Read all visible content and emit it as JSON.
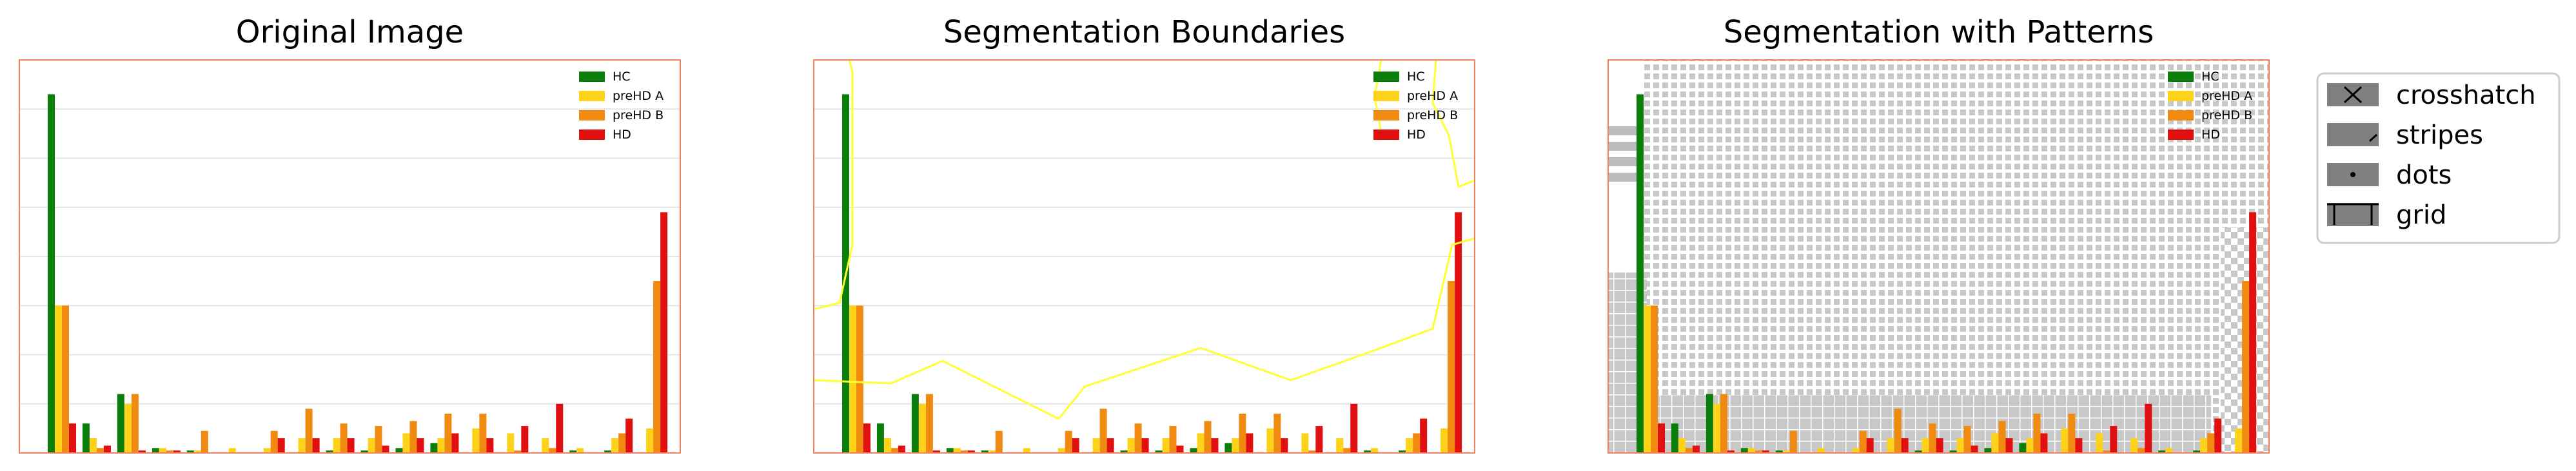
{
  "chart_data": [
    {
      "type": "bar",
      "title": "Original Image",
      "xlabel": "",
      "ylabel": "",
      "ylim": [
        0,
        8
      ],
      "grid": true,
      "legend_position": "top-right",
      "series": [
        {
          "name": "HC",
          "color": "#0a7d0a",
          "values": [
            7.3,
            0.6,
            1.2,
            0.1,
            0.05,
            0,
            0,
            0,
            0.05,
            0.05,
            0.1,
            0.2,
            0,
            0,
            0,
            0.05,
            0.05,
            0
          ]
        },
        {
          "name": "preHD A",
          "color": "#ffd21a",
          "values": [
            3.0,
            0.3,
            1.0,
            0.1,
            0.05,
            0.1,
            0.1,
            0.3,
            0.3,
            0.3,
            0.4,
            0.3,
            0.5,
            0.4,
            0.3,
            0.1,
            0.3,
            0.5
          ]
        },
        {
          "name": "preHD B",
          "color": "#f08a10",
          "values": [
            3.0,
            0.1,
            1.2,
            0.05,
            0.45,
            0,
            0.45,
            0.9,
            0.6,
            0.55,
            0.65,
            0.8,
            0.8,
            0.05,
            0.1,
            0,
            0.4,
            3.5
          ]
        },
        {
          "name": "HD",
          "color": "#e01010",
          "values": [
            0.6,
            0.15,
            0.05,
            0.05,
            0,
            0,
            0.3,
            0.3,
            0.3,
            0.15,
            0.3,
            0.4,
            0.3,
            0.55,
            1.0,
            0,
            0.7,
            4.9
          ]
        }
      ]
    },
    {
      "type": "bar",
      "title": "Segmentation Boundaries",
      "legend_position": "top-right",
      "overlay": "boundaries",
      "overlay_color": "#ffff33"
    },
    {
      "type": "bar",
      "title": "Segmentation with Patterns",
      "legend_position": "top-right",
      "overlay": "patterns"
    }
  ],
  "pattern_legend": [
    {
      "label": "crosshatch",
      "icon": "crosshatch-icon"
    },
    {
      "label": "stripes",
      "icon": "stripes-icon"
    },
    {
      "label": "dots",
      "icon": "dots-icon"
    },
    {
      "label": "grid",
      "icon": "grid-icon"
    }
  ],
  "colors": {
    "axes_border": "#f08060",
    "gridline": "#e6e6e6",
    "pattern_fill": "#c8c8c8",
    "legend_swatch": "#808080"
  }
}
